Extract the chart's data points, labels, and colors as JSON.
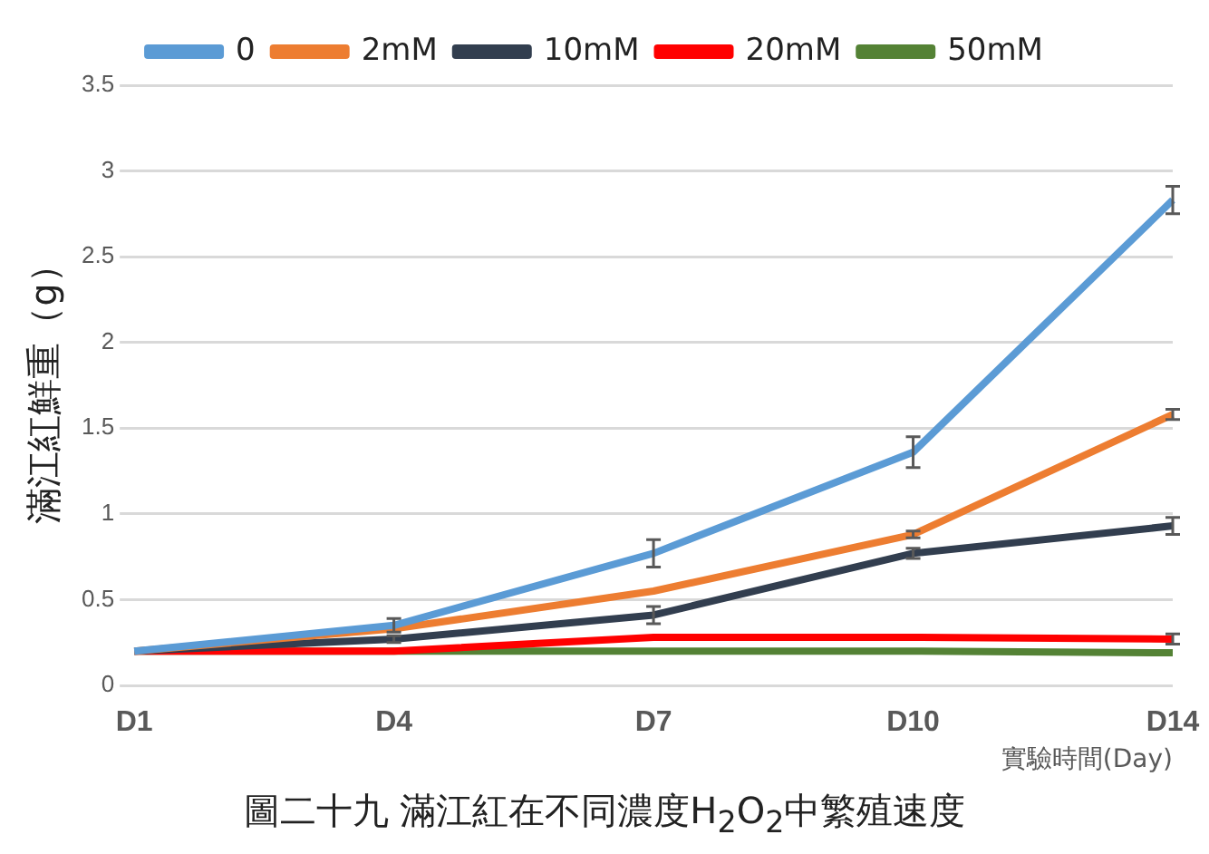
{
  "chart_data": {
    "type": "line",
    "title": "圖二十九 滿江紅在不同濃度H$_{2}$O$_{2}$中繁殖速度",
    "xlabel": "實驗時間(Day)",
    "ylabel": "滿江紅鮮重（g）",
    "categories": [
      "D1",
      "D4",
      "D7",
      "D10",
      "D14"
    ],
    "series": [
      {
        "name": "0",
        "color": "#5b9bd5",
        "values": [
          0.2,
          0.35,
          0.77,
          1.36,
          2.83
        ],
        "errors": [
          null,
          0.04,
          0.08,
          0.09,
          0.08
        ]
      },
      {
        "name": "2mM",
        "color": "#ed7d31",
        "values": [
          0.2,
          0.33,
          0.55,
          0.88,
          1.58
        ],
        "errors": [
          null,
          null,
          null,
          0.02,
          0.03
        ]
      },
      {
        "name": "10mM",
        "color": "#323e4f",
        "values": [
          0.2,
          0.27,
          0.41,
          0.77,
          0.93
        ],
        "errors": [
          null,
          0.02,
          0.05,
          0.03,
          0.05
        ]
      },
      {
        "name": "20mM",
        "color": "#ff0000",
        "values": [
          0.2,
          0.2,
          0.28,
          0.28,
          0.27
        ],
        "errors": [
          null,
          null,
          null,
          null,
          0.03
        ]
      },
      {
        "name": "50mM",
        "color": "#548235",
        "values": [
          0.2,
          0.2,
          0.2,
          0.2,
          0.19
        ]
      }
    ],
    "ylim": [
      0,
      3.5
    ],
    "yticks": [
      0,
      0.5,
      1,
      1.5,
      2,
      2.5,
      3,
      3.5
    ],
    "grid": "y",
    "legend": "top",
    "line_style": "solid"
  }
}
